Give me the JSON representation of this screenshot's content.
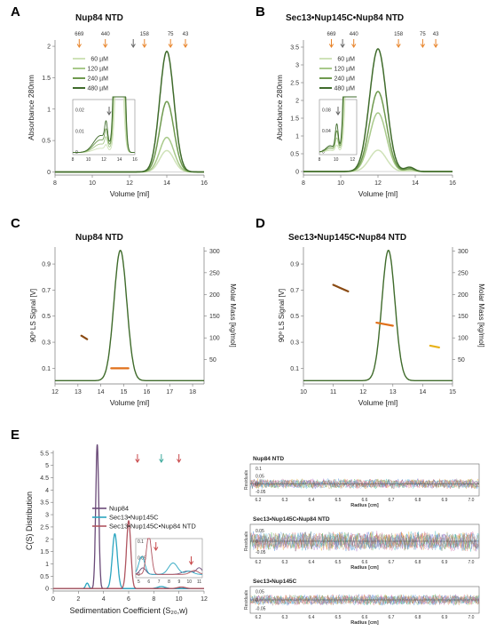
{
  "colors": {
    "g60": "#cfe2b8",
    "g120": "#a8c98a",
    "g240": "#6f9a4f",
    "g480": "#3f6b2b",
    "mass": "#e0701a",
    "mass_dark": "#8a4a12",
    "mass_yellow": "#e8b21a",
    "nup84": "#6a4a78",
    "sec13": "#2aa5c0",
    "complex": "#b05560",
    "arrow_orange": "#e8842a",
    "arrow_teal": "#3aa89a",
    "arrow_red": "#c8484a",
    "arrow_blue": "#4a7ac8"
  },
  "panels": [
    {
      "id": "A",
      "letter": "A",
      "title": "Nup84 NTD"
    },
    {
      "id": "B",
      "letter": "B",
      "title": "Sec13•Nup145C•Nup84 NTD"
    },
    {
      "id": "C",
      "letter": "C",
      "title": "Nup84 NTD"
    },
    {
      "id": "D",
      "letter": "D",
      "title": "Sec13•Nup145C•Nup84 NTD"
    },
    {
      "id": "E",
      "letter": "E",
      "title": ""
    }
  ],
  "chart_data": [
    {
      "panel": "A",
      "type": "line",
      "title": "Nup84 NTD",
      "xlabel": "Volume [ml]",
      "ylabel": "Absorbance 280nm",
      "xlim": [
        8,
        16
      ],
      "ylim": [
        -0.05,
        2.1
      ],
      "xticks": [
        8,
        10,
        12,
        14,
        16
      ],
      "yticks": [
        0,
        0.5,
        1,
        1.5,
        2
      ],
      "xtick_labels": [
        "8",
        "10",
        "12",
        "14",
        "16"
      ],
      "ytick_labels": [
        "0",
        "0.5",
        "1",
        "1.5",
        "2"
      ],
      "markers": [
        {
          "label": "669",
          "x": 9.3
        },
        {
          "label": "440",
          "x": 10.7
        },
        {
          "label": "",
          "x": 12.2
        },
        {
          "label": "158",
          "x": 12.8
        },
        {
          "label": "75",
          "x": 14.2
        },
        {
          "label": "43",
          "x": 15.0
        }
      ],
      "legend": [
        "60 µM",
        "120 µM",
        "240 µM",
        "480 µM"
      ],
      "series": [
        {
          "name": "60 µM",
          "peak_x": 14.0,
          "peak_y": 0.34,
          "width": 0.38
        },
        {
          "name": "120 µM",
          "peak_x": 14.0,
          "peak_y": 0.55,
          "width": 0.38
        },
        {
          "name": "240 µM",
          "peak_x": 14.0,
          "peak_y": 1.12,
          "width": 0.38
        },
        {
          "name": "480 µM",
          "peak_x": 14.0,
          "peak_y": 1.92,
          "width": 0.38
        }
      ],
      "inset": {
        "xticks": [
          8,
          10,
          12,
          14,
          16
        ],
        "yticks": [
          0,
          0.01,
          0.02
        ],
        "xtick_labels": [
          "8",
          "10",
          "12",
          "14",
          "16"
        ],
        "ytick_labels": [
          "0",
          "0.01",
          "0.02"
        ]
      }
    },
    {
      "panel": "B",
      "type": "line",
      "title": "Sec13•Nup145C•Nup84 NTD",
      "xlabel": "Volume [ml]",
      "ylabel": "Absorbance 280nm",
      "xlim": [
        8,
        16
      ],
      "ylim": [
        -0.1,
        3.7
      ],
      "xticks": [
        8,
        10,
        12,
        14,
        16
      ],
      "yticks": [
        0,
        0.5,
        1,
        1.5,
        2,
        2.5,
        3,
        3.5
      ],
      "xtick_labels": [
        "8",
        "10",
        "12",
        "14",
        "16"
      ],
      "ytick_labels": [
        "0",
        "0.5",
        "1",
        "1.5",
        "2",
        "2.5",
        "3",
        "3.5"
      ],
      "markers": [
        {
          "label": "669",
          "x": 9.5
        },
        {
          "label": "",
          "x": 10.1
        },
        {
          "label": "440",
          "x": 10.7
        },
        {
          "label": "158",
          "x": 13.1
        },
        {
          "label": "75",
          "x": 14.4
        },
        {
          "label": "43",
          "x": 15.1
        }
      ],
      "legend": [
        "60 µM",
        "120 µM",
        "240 µM",
        "480 µM"
      ],
      "series": [
        {
          "name": "60 µM",
          "peak_x": 12.0,
          "peak_y": 0.6,
          "width": 0.45
        },
        {
          "name": "120 µM",
          "peak_x": 12.0,
          "peak_y": 1.65,
          "width": 0.45
        },
        {
          "name": "240 µM",
          "peak_x": 12.0,
          "peak_y": 2.25,
          "width": 0.45
        },
        {
          "name": "480 µM",
          "peak_x": 12.0,
          "peak_y": 3.45,
          "width": 0.45
        }
      ],
      "inset": {
        "xticks": [
          8,
          10,
          12
        ],
        "yticks": [
          0,
          0.04,
          0.08
        ],
        "xtick_labels": [
          "8",
          "10",
          "12"
        ],
        "ytick_labels": [
          "0",
          "0.04",
          "0.08"
        ]
      }
    },
    {
      "panel": "C",
      "type": "line",
      "title": "Nup84 NTD",
      "xlabel": "Volume [ml]",
      "ylabel": "90º LS Signal [V]",
      "y2label": "Molar Mass [kg/mol]",
      "xlim": [
        12,
        18.5
      ],
      "ylim": [
        -0.02,
        1.03
      ],
      "y2lim": [
        -6,
        309
      ],
      "xticks": [
        12,
        13,
        14,
        15,
        16,
        17,
        18
      ],
      "yticks": [
        0.1,
        0.3,
        0.5,
        0.7,
        0.9
      ],
      "y2ticks": [
        50,
        100,
        150,
        200,
        250,
        300
      ],
      "xtick_labels": [
        "12",
        "13",
        "14",
        "15",
        "16",
        "17",
        "18"
      ],
      "ytick_labels": [
        "0.1",
        "0.3",
        "0.5",
        "0.7",
        "0.9"
      ],
      "y2tick_labels": [
        "50",
        "100",
        "150",
        "200",
        "250",
        "300"
      ],
      "ls_peak": {
        "x": 14.85,
        "y": 1.0,
        "width": 0.28,
        "baseline": 0.005
      },
      "mass_segments": [
        {
          "x": [
            13.15,
            13.4
          ],
          "y": [
            105,
            97
          ],
          "color": "mass_dark"
        },
        {
          "x": [
            14.45,
            15.2
          ],
          "y": [
            30,
            30
          ],
          "color": "mass"
        }
      ]
    },
    {
      "panel": "D",
      "type": "line",
      "title": "Sec13•Nup145C•Nup84 NTD",
      "xlabel": "Volume [ml]",
      "ylabel": "90º LS Signal [V]",
      "y2label": "Molar Mass [kg/mol]",
      "xlim": [
        10,
        15
      ],
      "ylim": [
        -0.02,
        1.03
      ],
      "y2lim": [
        -6,
        309
      ],
      "xticks": [
        10,
        11,
        12,
        13,
        14,
        15
      ],
      "yticks": [
        0.1,
        0.3,
        0.5,
        0.7,
        0.9
      ],
      "y2ticks": [
        50,
        100,
        150,
        200,
        250,
        300
      ],
      "xtick_labels": [
        "10",
        "11",
        "12",
        "13",
        "14",
        "15"
      ],
      "ytick_labels": [
        "0.1",
        "0.3",
        "0.5",
        "0.7",
        "0.9"
      ],
      "y2tick_labels": [
        "50",
        "100",
        "150",
        "200",
        "250",
        "300"
      ],
      "ls_peak": {
        "x": 12.85,
        "y": 1.0,
        "width": 0.22,
        "baseline": 0.005
      },
      "mass_segments": [
        {
          "x": [
            11.0,
            11.5
          ],
          "y": [
            222,
            207
          ],
          "color": "mass_dark"
        },
        {
          "x": [
            12.45,
            13.0
          ],
          "y": [
            135,
            128
          ],
          "color": "mass"
        },
        {
          "x": [
            14.25,
            14.55
          ],
          "y": [
            82,
            78
          ],
          "color": "mass_yellow"
        }
      ]
    },
    {
      "panel": "E",
      "type": "line",
      "xlabel": "Sedimentation Coefficient (S₂₀,w)",
      "ylabel": "C(S) Distribution",
      "xlim": [
        0,
        12
      ],
      "ylim": [
        -0.1,
        5.6
      ],
      "xticks": [
        0,
        2,
        4,
        6,
        8,
        10,
        12
      ],
      "yticks": [
        0,
        0.5,
        1,
        1.5,
        2,
        2.5,
        3,
        3.5,
        4,
        4.5,
        5,
        5.5
      ],
      "xtick_labels": [
        "0",
        "2",
        "4",
        "6",
        "8",
        "10",
        "12"
      ],
      "ytick_labels": [
        "0",
        "0.5",
        "1",
        "1.5",
        "2",
        "2.5",
        "3",
        "3.5",
        "4",
        "4.5",
        "5",
        "5.5"
      ],
      "legend": [
        "Nup84",
        "Sec13•Nup145C",
        "Sec13•Nup145C•Nup84 NTD"
      ],
      "series": [
        {
          "name": "Nup84",
          "peak_x": 3.5,
          "peak_y": 5.85,
          "width": 0.12
        },
        {
          "name": "Sec13•Nup145C",
          "peak_x": 4.9,
          "peak_y": 2.22,
          "width": 0.2
        },
        {
          "name": "Sec13•Nup145C•Nup84 NTD",
          "peak_x": 6.0,
          "peak_y": 2.75,
          "width": 0.17
        }
      ],
      "inset": {
        "xticks": [
          5,
          6,
          7,
          8,
          9,
          10,
          11
        ],
        "yticks": [
          0,
          0.05,
          0.1
        ],
        "xtick_labels": [
          "5",
          "6",
          "7",
          "8",
          "9",
          "10",
          "11"
        ],
        "ytick_labels": [
          "0",
          "0.05",
          "0.1"
        ]
      },
      "arrows": [
        {
          "x": 6.7,
          "color": "arrow_red"
        },
        {
          "x": 8.6,
          "color": "arrow_teal"
        },
        {
          "x": 10.0,
          "color": "arrow_red"
        }
      ]
    },
    {
      "panel": "E-residuals",
      "type": "scatter",
      "xlabel": "Radius [cm]",
      "ylabel": "Residuals",
      "plots": [
        {
          "title": "Nup84 NTD",
          "yticks": [
            0.1,
            0.05,
            0,
            -0.05
          ],
          "ytick_labels": [
            "0.1",
            "0.05",
            "0",
            "-0.05"
          ],
          "ylim": [
            -0.08,
            0.13
          ]
        },
        {
          "title": "Sec13•Nup145C•Nup84 NTD",
          "yticks": [
            0.05,
            0,
            -0.05
          ],
          "ytick_labels": [
            "0.05",
            "0",
            "-0.05"
          ],
          "ylim": [
            -0.08,
            0.08
          ]
        },
        {
          "title": "Sec13•Nup145C",
          "yticks": [
            0.05,
            0,
            -0.05
          ],
          "ytick_labels": [
            "0.05",
            "0",
            "-0.05"
          ],
          "ylim": [
            -0.08,
            0.08
          ]
        }
      ],
      "xlim": [
        6.17,
        7.03
      ],
      "xticks": [
        6.2,
        6.3,
        6.4,
        6.5,
        6.6,
        6.7,
        6.8,
        6.9,
        7.0
      ],
      "xtick_labels": [
        "6.2",
        "6.3",
        "6.4",
        "6.5",
        "6.6",
        "6.7",
        "6.8",
        "6.9",
        "7.0"
      ]
    }
  ]
}
